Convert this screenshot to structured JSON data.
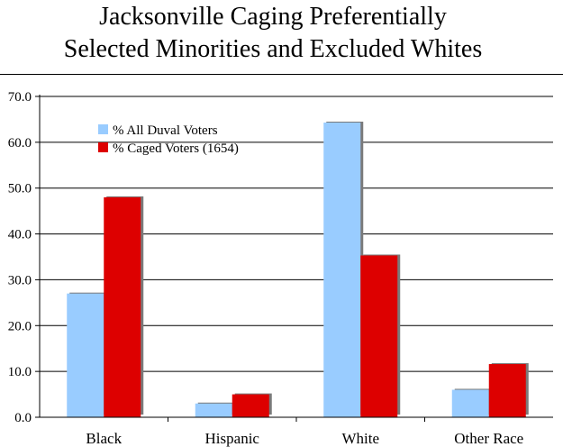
{
  "chart_data": {
    "type": "bar",
    "title_lines": [
      "Jacksonville Caging Preferentially",
      "Selected Minorities and Excluded Whites"
    ],
    "categories": [
      "Black",
      "Hispanic",
      "White",
      "Other Race"
    ],
    "series": [
      {
        "name": "% All Duval Voters",
        "color": "#99ccff",
        "values": [
          27.0,
          3.0,
          64.3,
          6.0
        ]
      },
      {
        "name": "% Caged Voters (1654)",
        "color": "#dd0000",
        "values": [
          48.0,
          5.0,
          35.3,
          11.6
        ]
      }
    ],
    "ylim": [
      0,
      70
    ],
    "yticks": [
      "0.0",
      "10.0",
      "20.0",
      "30.0",
      "40.0",
      "50.0",
      "60.0",
      "70.0"
    ],
    "grid": true,
    "legend_position": "top-left"
  }
}
